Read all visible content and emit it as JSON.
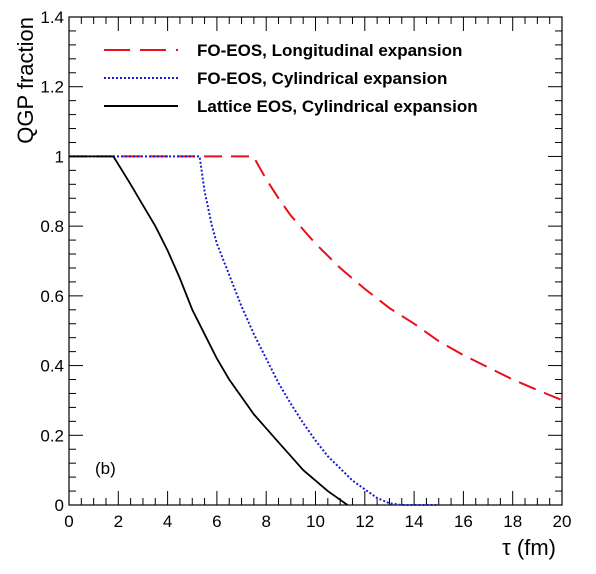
{
  "chart_data": {
    "type": "line",
    "xlabel": "τ (fm)",
    "ylabel": "QGP fraction",
    "xlim": [
      0,
      20
    ],
    "ylim": [
      0,
      1.4
    ],
    "xticks": [
      "0",
      "2",
      "4",
      "6",
      "8",
      "10",
      "12",
      "14",
      "16",
      "18",
      "20"
    ],
    "yticks": [
      "0",
      "0.2",
      "0.4",
      "0.6",
      "0.8",
      "1",
      "1.2",
      "1.4"
    ],
    "grid": false,
    "legend_position": "top",
    "annotation": "(b)",
    "series": [
      {
        "name": "FO-EOS, Longitudinal expansion",
        "color": "#e8101a",
        "style": "dashed",
        "x": [
          0,
          7.5,
          7.6,
          8.0,
          8.5,
          9.0,
          10.0,
          11.0,
          12.0,
          13.0,
          14.0,
          15.0,
          16.0,
          17.0,
          18.0,
          19.0,
          20.2
        ],
        "y": [
          1.0,
          1.0,
          0.985,
          0.935,
          0.88,
          0.83,
          0.75,
          0.68,
          0.62,
          0.565,
          0.52,
          0.47,
          0.43,
          0.395,
          0.36,
          0.33,
          0.295
        ]
      },
      {
        "name": "FO-EOS, Cylindrical expansion",
        "color": "#1a1ad6",
        "style": "dotted",
        "x": [
          0,
          5.3,
          5.5,
          5.8,
          6.0,
          6.5,
          7.0,
          7.5,
          8.0,
          8.5,
          9.0,
          9.5,
          10.0,
          10.5,
          11.0,
          11.5,
          12.0,
          12.5,
          13.0,
          13.5,
          15.0
        ],
        "y": [
          1.0,
          1.0,
          0.9,
          0.8,
          0.75,
          0.66,
          0.57,
          0.49,
          0.42,
          0.35,
          0.29,
          0.235,
          0.185,
          0.14,
          0.105,
          0.07,
          0.045,
          0.02,
          0.005,
          0,
          0
        ]
      },
      {
        "name": "Lattice EOS, Cylindrical expansion",
        "color": "#000000",
        "style": "solid",
        "x": [
          0,
          1.8,
          2.5,
          3.0,
          3.5,
          4.0,
          4.5,
          5.0,
          5.5,
          6.0,
          6.5,
          7.0,
          7.5,
          8.0,
          8.5,
          9.0,
          9.5,
          10.0,
          10.5,
          11.0,
          11.3
        ],
        "y": [
          1.0,
          1.0,
          0.92,
          0.86,
          0.8,
          0.73,
          0.65,
          0.56,
          0.49,
          0.42,
          0.36,
          0.31,
          0.26,
          0.22,
          0.18,
          0.14,
          0.1,
          0.07,
          0.04,
          0.015,
          0
        ]
      }
    ]
  }
}
